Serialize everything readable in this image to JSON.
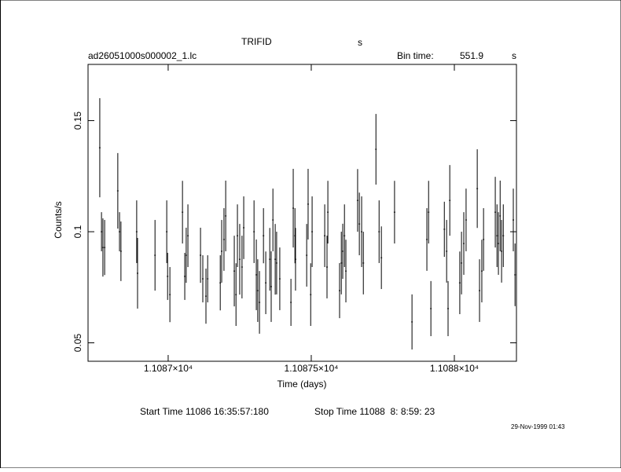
{
  "chart_data": {
    "type": "errorbar",
    "title": "TRIFID",
    "title_unit": "s",
    "file_name": "ad26051000s000002_1.lc",
    "bin_time_label": "Bin time:",
    "bin_time": "551.9",
    "bin_time_unit": "s",
    "x_label": "Time (days)",
    "y_label": "Counts/s",
    "start_time": "Start Time 11086 16:35:57:180",
    "stop_time": "Stop Time 11088  8: 8:59: 23",
    "timestamp": "29-Nov-1999 01:43",
    "color": "#000000",
    "xlim": [
      11086.72,
      11088.217
    ],
    "ylim": [
      0.0417,
      0.1753
    ],
    "xticks": [
      {
        "value": 11087,
        "label": "1.1087×10⁴"
      },
      {
        "value": 11087.5,
        "label": "1.10875×10⁴"
      },
      {
        "value": 11088,
        "label": "1.1088×10⁴"
      }
    ],
    "yticks": [
      0.05,
      0.1,
      0.15
    ],
    "x": [
      11086.761,
      11086.767,
      11086.772,
      11086.778,
      11086.824,
      11086.83,
      11086.835,
      11086.89,
      11086.893,
      11086.954,
      11086.995,
      11086.998,
      11087.006,
      11087.05,
      11087.058,
      11087.063,
      11087.069,
      11087.113,
      11087.121,
      11087.132,
      11087.138,
      11087.182,
      11087.187,
      11087.195,
      11087.201,
      11087.231,
      11087.237,
      11087.242,
      11087.25,
      11087.258,
      11087.264,
      11087.3,
      11087.308,
      11087.313,
      11087.319,
      11087.333,
      11087.341,
      11087.355,
      11087.36,
      11087.366,
      11087.374,
      11087.379,
      11087.39,
      11087.429,
      11087.437,
      11087.443,
      11087.445,
      11087.484,
      11087.489,
      11087.498,
      11087.503,
      11087.547,
      11087.555,
      11087.558,
      11087.599,
      11087.605,
      11087.61,
      11087.616,
      11087.621,
      11087.662,
      11087.668,
      11087.676,
      11087.682,
      11087.726,
      11087.737,
      11087.745,
      11087.791,
      11087.852,
      11087.904,
      11087.91,
      11087.918,
      11087.965,
      11087.973,
      11087.978,
      11087.984,
      11088.019,
      11088.025,
      11088.033,
      11088.041,
      11088.08,
      11088.088,
      11088.096,
      11088.102,
      11088.143,
      11088.149,
      11088.154,
      11088.16,
      11088.165,
      11088.171,
      11088.206,
      11088.212
    ],
    "values": [
      0.1378,
      0.1,
      0.0929,
      0.0929,
      0.1184,
      0.1,
      0.0912,
      0.1,
      0.0813,
      0.0894,
      0.1,
      0.0799,
      0.0717,
      0.1088,
      0.0799,
      0.0894,
      0.0982,
      0.0894,
      0.0788,
      0.071,
      0.0788,
      0.077,
      0.0912,
      0.0965,
      0.1071,
      0.0823,
      0.0717,
      0.0982,
      0.0876,
      0.0841,
      0.1018,
      0.1,
      0.0806,
      0.0735,
      0.0682,
      0.0982,
      0.077,
      0.0876,
      0.0753,
      0.1053,
      0.0876,
      0.0859,
      0.0788,
      0.0682,
      0.1106,
      0.0982,
      0.0876,
      0.0894,
      0.1124,
      0.0717,
      0.1,
      0.0982,
      0.0841,
      0.1088,
      0.0735,
      0.0859,
      0.0912,
      0.0982,
      0.0823,
      0.1141,
      0.1035,
      0.1,
      0.0859,
      0.1371,
      0.1,
      0.0883,
      0.1088,
      0.0594,
      0.0965,
      0.1088,
      0.0654,
      0.1011,
      0.0912,
      0.0654,
      0.1141,
      0.077,
      0.0859,
      0.0947,
      0.1053,
      0.1194,
      0.0735,
      0.0823,
      0.0965,
      0.1088,
      0.0982,
      0.0947,
      0.1071,
      0.0912,
      0.0982,
      0.1053,
      0.0806
    ],
    "errors": [
      0.0223,
      0.0088,
      0.0131,
      0.0124,
      0.017,
      0.0088,
      0.0134,
      0.0141,
      0.0159,
      0.0159,
      0.0141,
      0.0106,
      0.0124,
      0.0141,
      0.0106,
      0.0124,
      0.0141,
      0.0124,
      0.0106,
      0.0124,
      0.0106,
      0.0124,
      0.0141,
      0.0141,
      0.0159,
      0.0159,
      0.0141,
      0.0141,
      0.0159,
      0.0141,
      0.0141,
      0.0141,
      0.0159,
      0.0141,
      0.0141,
      0.0124,
      0.0141,
      0.0141,
      0.0159,
      0.0141,
      0.0159,
      0.0141,
      0.0141,
      0.0106,
      0.0177,
      0.0124,
      0.0141,
      0.0141,
      0.0159,
      0.0141,
      0.0159,
      0.0141,
      0.0141,
      0.0141,
      0.0124,
      0.0141,
      0.0124,
      0.0141,
      0.0141,
      0.0141,
      0.0141,
      0.0159,
      0.0141,
      0.0159,
      0.0141,
      0.0141,
      0.0141,
      0.0124,
      0.0141,
      0.0141,
      0.0124,
      0.0124,
      0.0141,
      0.0124,
      0.0159,
      0.0141,
      0.0141,
      0.0141,
      0.0141,
      0.0177,
      0.0141,
      0.0141,
      0.0141,
      0.0159,
      0.0141,
      0.0141,
      0.0159,
      0.0141,
      0.0141,
      0.0141,
      0.0141
    ]
  }
}
